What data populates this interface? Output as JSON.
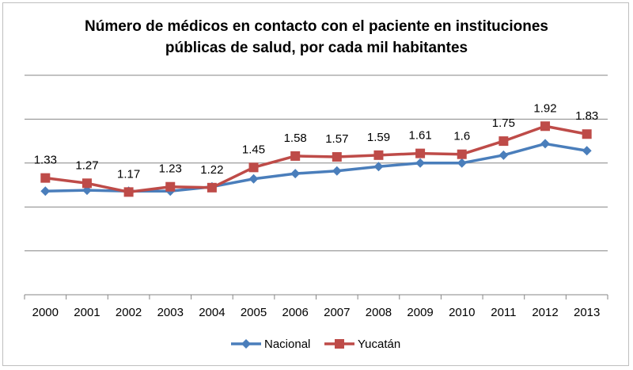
{
  "chart_data": {
    "type": "line",
    "title_line1": "Número de médicos en contacto con el paciente en  instituciones",
    "title_line2": "públicas de salud, por cada mil habitantes",
    "categories": [
      "2000",
      "2001",
      "2002",
      "2003",
      "2004",
      "2005",
      "2006",
      "2007",
      "2008",
      "2009",
      "2010",
      "2011",
      "2012",
      "2013"
    ],
    "ylim": [
      0,
      2.5
    ],
    "grid": true,
    "legend_placement": "bottom",
    "series": [
      {
        "name": "Nacional",
        "color": "#4a7ebb",
        "marker": "diamond",
        "values": [
          1.18,
          1.19,
          1.18,
          1.18,
          1.23,
          1.32,
          1.38,
          1.41,
          1.46,
          1.5,
          1.5,
          1.59,
          1.72,
          1.64
        ]
      },
      {
        "name": "Yucatán",
        "color": "#be4b48",
        "marker": "square",
        "values": [
          1.33,
          1.27,
          1.17,
          1.23,
          1.22,
          1.45,
          1.58,
          1.57,
          1.59,
          1.61,
          1.6,
          1.75,
          1.92,
          1.83
        ],
        "labels": [
          "1.33",
          "1.27",
          "1.17",
          "1.23",
          "1.22",
          "1.45",
          "1.58",
          "1.57",
          "1.59",
          "1.61",
          "1.6",
          "1.75",
          "1.92",
          "1.83"
        ]
      }
    ]
  }
}
